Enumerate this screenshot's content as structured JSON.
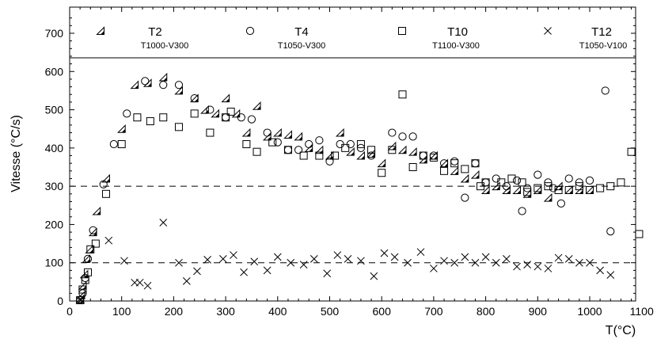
{
  "chart_data": {
    "type": "scatter",
    "title": "",
    "xlabel": "T(°C)",
    "ylabel": "Vitesse (°C/s)",
    "xlim": [
      0,
      1100
    ],
    "ylim": [
      0,
      750
    ],
    "xticks": [
      0,
      100,
      200,
      300,
      400,
      500,
      600,
      700,
      800,
      900,
      1000,
      1100
    ],
    "yticks": [
      0,
      100,
      200,
      300,
      400,
      500,
      600,
      700
    ],
    "grid": false,
    "legend_position": "top",
    "reference_lines": [
      300,
      100
    ],
    "series": [
      {
        "name": "T2",
        "subtitle": "T1000-V300",
        "marker": "half-triangle",
        "points": [
          [
            20,
            5
          ],
          [
            22,
            15
          ],
          [
            25,
            40
          ],
          [
            28,
            70
          ],
          [
            32,
            110
          ],
          [
            38,
            135
          ],
          [
            45,
            180
          ],
          [
            52,
            235
          ],
          [
            70,
            320
          ],
          [
            100,
            450
          ],
          [
            125,
            565
          ],
          [
            150,
            570
          ],
          [
            180,
            585
          ],
          [
            210,
            550
          ],
          [
            240,
            530
          ],
          [
            260,
            500
          ],
          [
            280,
            490
          ],
          [
            300,
            530
          ],
          [
            320,
            490
          ],
          [
            340,
            440
          ],
          [
            360,
            510
          ],
          [
            380,
            430
          ],
          [
            400,
            440
          ],
          [
            420,
            435
          ],
          [
            440,
            430
          ],
          [
            460,
            400
          ],
          [
            480,
            395
          ],
          [
            500,
            380
          ],
          [
            520,
            440
          ],
          [
            540,
            390
          ],
          [
            560,
            380
          ],
          [
            580,
            385
          ],
          [
            600,
            360
          ],
          [
            620,
            405
          ],
          [
            640,
            395
          ],
          [
            660,
            390
          ],
          [
            680,
            370
          ],
          [
            700,
            380
          ],
          [
            720,
            360
          ],
          [
            740,
            340
          ],
          [
            760,
            320
          ],
          [
            780,
            330
          ],
          [
            800,
            290
          ],
          [
            820,
            300
          ],
          [
            840,
            290
          ],
          [
            860,
            290
          ],
          [
            880,
            280
          ],
          [
            900,
            290
          ],
          [
            920,
            270
          ],
          [
            940,
            300
          ],
          [
            960,
            290
          ],
          [
            980,
            290
          ],
          [
            1000,
            290
          ]
        ]
      },
      {
        "name": "T4",
        "subtitle": "T1050-V300",
        "marker": "circle",
        "points": [
          [
            20,
            3
          ],
          [
            25,
            20
          ],
          [
            30,
            60
          ],
          [
            35,
            110
          ],
          [
            45,
            185
          ],
          [
            65,
            305
          ],
          [
            85,
            410
          ],
          [
            110,
            490
          ],
          [
            145,
            575
          ],
          [
            180,
            565
          ],
          [
            210,
            565
          ],
          [
            240,
            530
          ],
          [
            270,
            500
          ],
          [
            300,
            480
          ],
          [
            330,
            480
          ],
          [
            350,
            475
          ],
          [
            380,
            440
          ],
          [
            400,
            415
          ],
          [
            420,
            395
          ],
          [
            440,
            395
          ],
          [
            460,
            410
          ],
          [
            480,
            420
          ],
          [
            500,
            365
          ],
          [
            520,
            410
          ],
          [
            540,
            410
          ],
          [
            560,
            400
          ],
          [
            580,
            380
          ],
          [
            620,
            440
          ],
          [
            640,
            430
          ],
          [
            660,
            430
          ],
          [
            680,
            380
          ],
          [
            700,
            380
          ],
          [
            720,
            360
          ],
          [
            740,
            365
          ],
          [
            760,
            270
          ],
          [
            780,
            360
          ],
          [
            800,
            310
          ],
          [
            820,
            320
          ],
          [
            840,
            300
          ],
          [
            860,
            315
          ],
          [
            870,
            235
          ],
          [
            880,
            295
          ],
          [
            900,
            330
          ],
          [
            920,
            310
          ],
          [
            930,
            295
          ],
          [
            945,
            255
          ],
          [
            960,
            320
          ],
          [
            980,
            310
          ],
          [
            1000,
            315
          ],
          [
            1030,
            550
          ],
          [
            1040,
            182
          ]
        ]
      },
      {
        "name": "T10",
        "subtitle": "T1100-V300",
        "marker": "square",
        "points": [
          [
            20,
            2
          ],
          [
            25,
            30
          ],
          [
            30,
            55
          ],
          [
            35,
            75
          ],
          [
            40,
            135
          ],
          [
            50,
            150
          ],
          [
            70,
            280
          ],
          [
            100,
            410
          ],
          [
            130,
            480
          ],
          [
            155,
            470
          ],
          [
            180,
            480
          ],
          [
            210,
            455
          ],
          [
            240,
            490
          ],
          [
            270,
            440
          ],
          [
            300,
            480
          ],
          [
            310,
            495
          ],
          [
            340,
            410
          ],
          [
            360,
            390
          ],
          [
            390,
            415
          ],
          [
            420,
            395
          ],
          [
            450,
            380
          ],
          [
            480,
            380
          ],
          [
            510,
            380
          ],
          [
            530,
            400
          ],
          [
            560,
            410
          ],
          [
            580,
            395
          ],
          [
            600,
            335
          ],
          [
            620,
            395
          ],
          [
            640,
            540
          ],
          [
            660,
            350
          ],
          [
            680,
            380
          ],
          [
            700,
            375
          ],
          [
            720,
            340
          ],
          [
            740,
            360
          ],
          [
            760,
            345
          ],
          [
            780,
            360
          ],
          [
            790,
            300
          ],
          [
            800,
            310
          ],
          [
            830,
            310
          ],
          [
            850,
            320
          ],
          [
            870,
            310
          ],
          [
            880,
            285
          ],
          [
            900,
            295
          ],
          [
            920,
            300
          ],
          [
            940,
            290
          ],
          [
            960,
            290
          ],
          [
            980,
            300
          ],
          [
            1000,
            290
          ],
          [
            1020,
            295
          ],
          [
            1040,
            300
          ],
          [
            1060,
            310
          ],
          [
            1080,
            390
          ],
          [
            1095,
            175
          ]
        ]
      },
      {
        "name": "T12",
        "subtitle": "T1050-V100",
        "marker": "cross",
        "points": [
          [
            22,
            3
          ],
          [
            75,
            158
          ],
          [
            105,
            105
          ],
          [
            125,
            48
          ],
          [
            135,
            48
          ],
          [
            150,
            40
          ],
          [
            180,
            205
          ],
          [
            210,
            100
          ],
          [
            225,
            52
          ],
          [
            245,
            78
          ],
          [
            265,
            108
          ],
          [
            295,
            110
          ],
          [
            315,
            120
          ],
          [
            335,
            75
          ],
          [
            355,
            103
          ],
          [
            380,
            80
          ],
          [
            400,
            115
          ],
          [
            425,
            100
          ],
          [
            450,
            95
          ],
          [
            470,
            110
          ],
          [
            495,
            72
          ],
          [
            515,
            120
          ],
          [
            535,
            110
          ],
          [
            560,
            105
          ],
          [
            585,
            65
          ],
          [
            605,
            125
          ],
          [
            625,
            115
          ],
          [
            650,
            100
          ],
          [
            675,
            128
          ],
          [
            700,
            85
          ],
          [
            720,
            105
          ],
          [
            740,
            100
          ],
          [
            760,
            115
          ],
          [
            780,
            100
          ],
          [
            800,
            115
          ],
          [
            820,
            100
          ],
          [
            840,
            110
          ],
          [
            860,
            90
          ],
          [
            880,
            95
          ],
          [
            900,
            90
          ],
          [
            920,
            85
          ],
          [
            940,
            113
          ],
          [
            960,
            110
          ],
          [
            980,
            100
          ],
          [
            1000,
            100
          ],
          [
            1020,
            80
          ],
          [
            1040,
            68
          ]
        ]
      }
    ]
  }
}
